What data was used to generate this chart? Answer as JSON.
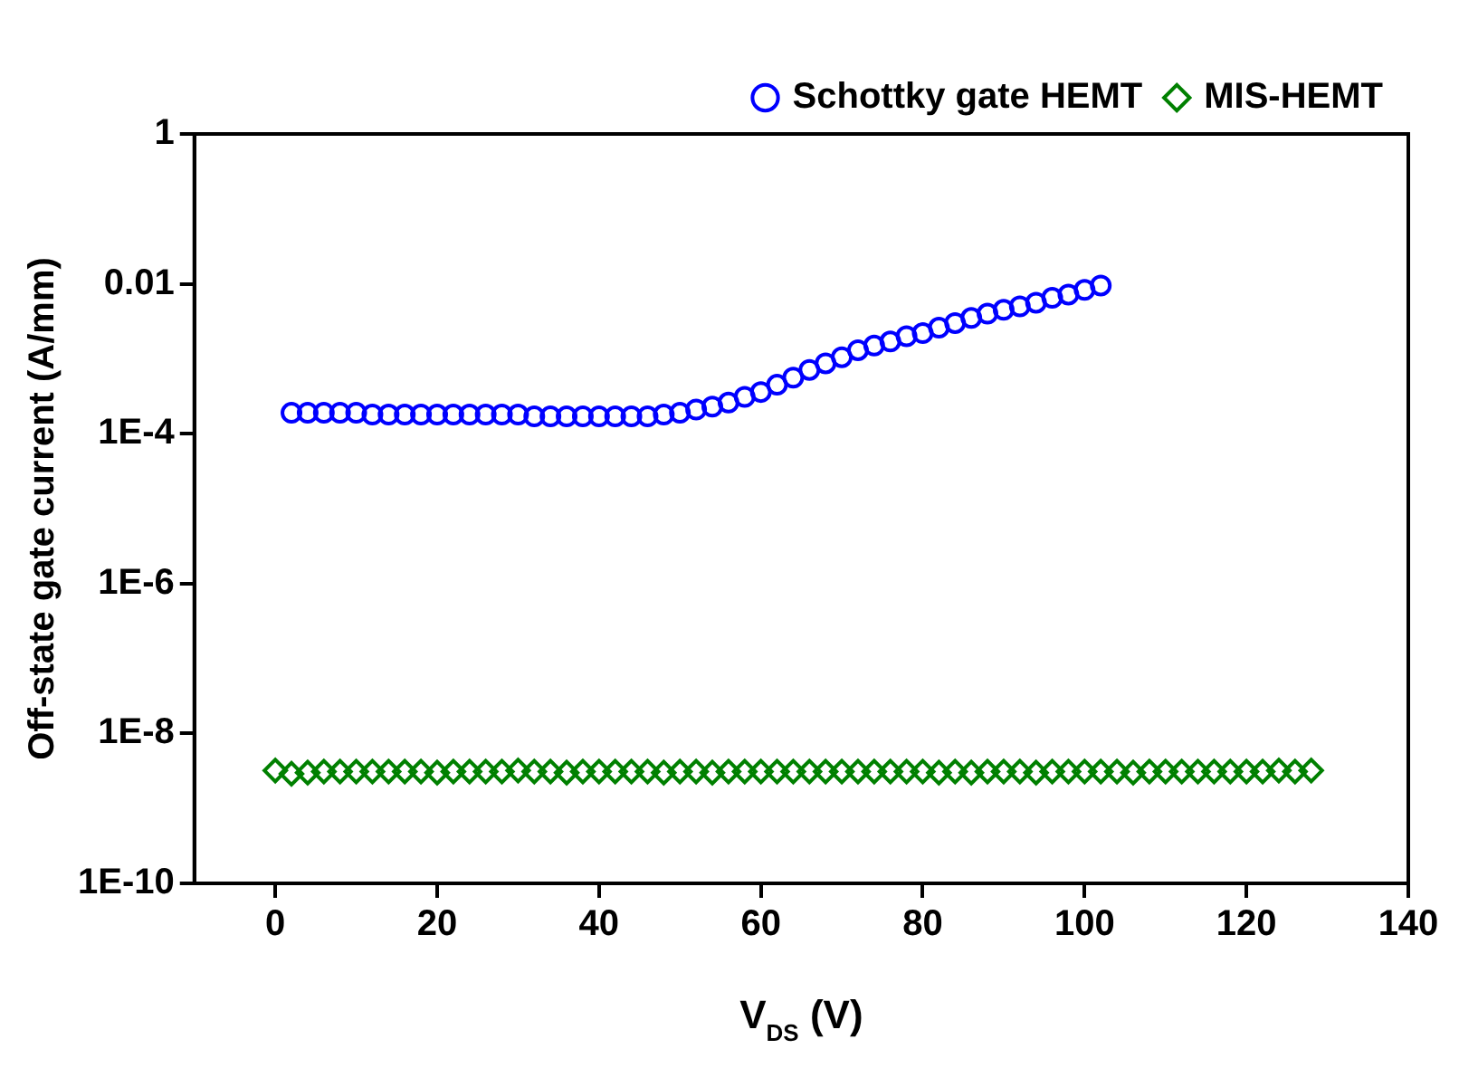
{
  "chart_data": {
    "type": "scatter",
    "xlabel": "V$_{DS}$ (V)",
    "ylabel": "Off-state gate current (A/mm)",
    "log": "y",
    "grid": false,
    "legend": "top right",
    "xlim": [
      -10,
      140
    ],
    "xticks": [
      0,
      20,
      40,
      60,
      80,
      100,
      120,
      140
    ],
    "ylim": [
      1e-10,
      1
    ],
    "yticks": [
      {
        "value": 1e-10,
        "label": "1E-10"
      },
      {
        "value": 1e-08,
        "label": "1E-8"
      },
      {
        "value": 1e-06,
        "label": "1E-6"
      },
      {
        "value": 0.0001,
        "label": "1E-4"
      },
      0.01,
      1
    ],
    "series": [
      {
        "name": "Schottky gate HEMT",
        "color": "#0000ff",
        "marker": "circle",
        "x": [
          2,
          4,
          6,
          8,
          10,
          12,
          14,
          16,
          18,
          20,
          22,
          24,
          26,
          28,
          30,
          32,
          34,
          36,
          38,
          40,
          42,
          44,
          46,
          48,
          50,
          52,
          54,
          56,
          58,
          60,
          62,
          64,
          66,
          68,
          70,
          72,
          74,
          76,
          78,
          80,
          82,
          84,
          86,
          88,
          90,
          92,
          94,
          96,
          98,
          100,
          102
        ],
        "values": [
          0.00019,
          0.00019,
          0.00019,
          0.00019,
          0.00019,
          0.00018,
          0.00018,
          0.00018,
          0.00018,
          0.00018,
          0.00018,
          0.00018,
          0.00018,
          0.00018,
          0.00018,
          0.00017,
          0.00017,
          0.00017,
          0.00017,
          0.00017,
          0.00017,
          0.00017,
          0.00017,
          0.00018,
          0.00019,
          0.00021,
          0.00023,
          0.00026,
          0.00031,
          0.00036,
          0.00045,
          0.00056,
          0.00071,
          0.00087,
          0.00105,
          0.0013,
          0.0015,
          0.0017,
          0.002,
          0.0022,
          0.0026,
          0.003,
          0.0035,
          0.004,
          0.0045,
          0.005,
          0.0056,
          0.0065,
          0.0072,
          0.0083,
          0.0095
        ]
      },
      {
        "name": "MIS-HEMT",
        "color": "#008000",
        "marker": "diamond",
        "x": [
          0,
          2,
          4,
          6,
          8,
          10,
          12,
          14,
          16,
          18,
          20,
          22,
          24,
          26,
          28,
          30,
          32,
          34,
          36,
          38,
          40,
          42,
          44,
          46,
          48,
          50,
          52,
          54,
          56,
          58,
          60,
          62,
          64,
          66,
          68,
          70,
          72,
          74,
          76,
          78,
          80,
          82,
          84,
          86,
          88,
          90,
          92,
          94,
          96,
          98,
          100,
          102,
          104,
          106,
          108,
          110,
          112,
          114,
          116,
          118,
          120,
          122,
          124,
          126,
          128
        ],
        "values": [
          3.2e-09,
          2.9e-09,
          3e-09,
          3.1e-09,
          3.1e-09,
          3.1e-09,
          3.1e-09,
          3.1e-09,
          3.1e-09,
          3.1e-09,
          3e-09,
          3.1e-09,
          3.1e-09,
          3.1e-09,
          3.1e-09,
          3.2e-09,
          3.1e-09,
          3.1e-09,
          3e-09,
          3.1e-09,
          3.1e-09,
          3.1e-09,
          3.1e-09,
          3.1e-09,
          3e-09,
          3.1e-09,
          3.1e-09,
          3e-09,
          3.1e-09,
          3.1e-09,
          3.1e-09,
          3.1e-09,
          3.1e-09,
          3.1e-09,
          3.1e-09,
          3.1e-09,
          3.1e-09,
          3.1e-09,
          3.1e-09,
          3.1e-09,
          3.1e-09,
          3e-09,
          3.1e-09,
          3e-09,
          3.1e-09,
          3.1e-09,
          3.1e-09,
          3e-09,
          3.1e-09,
          3.1e-09,
          3.1e-09,
          3.1e-09,
          3.1e-09,
          3e-09,
          3.1e-09,
          3.1e-09,
          3.1e-09,
          3.1e-09,
          3.1e-09,
          3.1e-09,
          3.1e-09,
          3.1e-09,
          3.2e-09,
          3.1e-09,
          3.2e-09
        ]
      }
    ]
  }
}
